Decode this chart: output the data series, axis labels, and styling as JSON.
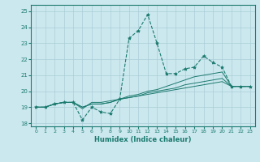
{
  "title": "",
  "xlabel": "Humidex (Indice chaleur)",
  "ylabel": "",
  "bg_color": "#cce8ef",
  "grid_color": "#aacdd6",
  "line_color": "#1a7a6e",
  "xlim": [
    -0.5,
    23.5
  ],
  "ylim": [
    17.8,
    25.4
  ],
  "yticks": [
    18,
    19,
    20,
    21,
    22,
    23,
    24,
    25
  ],
  "xticks": [
    0,
    1,
    2,
    3,
    4,
    5,
    6,
    7,
    8,
    9,
    10,
    11,
    12,
    13,
    14,
    15,
    16,
    17,
    18,
    19,
    20,
    21,
    22,
    23
  ],
  "series": [
    [
      19.0,
      19.0,
      19.2,
      19.3,
      19.3,
      18.2,
      19.0,
      18.7,
      18.6,
      19.5,
      23.3,
      23.8,
      24.8,
      23.0,
      21.1,
      21.1,
      21.4,
      21.5,
      22.2,
      21.8,
      21.5,
      20.3,
      20.3,
      20.3
    ],
    [
      19.0,
      19.0,
      19.2,
      19.3,
      19.3,
      18.9,
      19.3,
      19.3,
      19.4,
      19.5,
      19.7,
      19.8,
      20.0,
      20.1,
      20.3,
      20.5,
      20.7,
      20.9,
      21.0,
      21.1,
      21.2,
      20.3,
      20.3,
      20.3
    ],
    [
      19.0,
      19.0,
      19.2,
      19.3,
      19.3,
      19.0,
      19.2,
      19.2,
      19.3,
      19.5,
      19.6,
      19.7,
      19.9,
      20.0,
      20.1,
      20.2,
      20.4,
      20.5,
      20.6,
      20.7,
      20.8,
      20.3,
      20.3,
      20.3
    ],
    [
      19.0,
      19.0,
      19.2,
      19.3,
      19.3,
      19.0,
      19.2,
      19.2,
      19.3,
      19.5,
      19.6,
      19.7,
      19.8,
      19.9,
      20.0,
      20.1,
      20.2,
      20.3,
      20.4,
      20.5,
      20.6,
      20.3,
      20.3,
      20.3
    ]
  ]
}
